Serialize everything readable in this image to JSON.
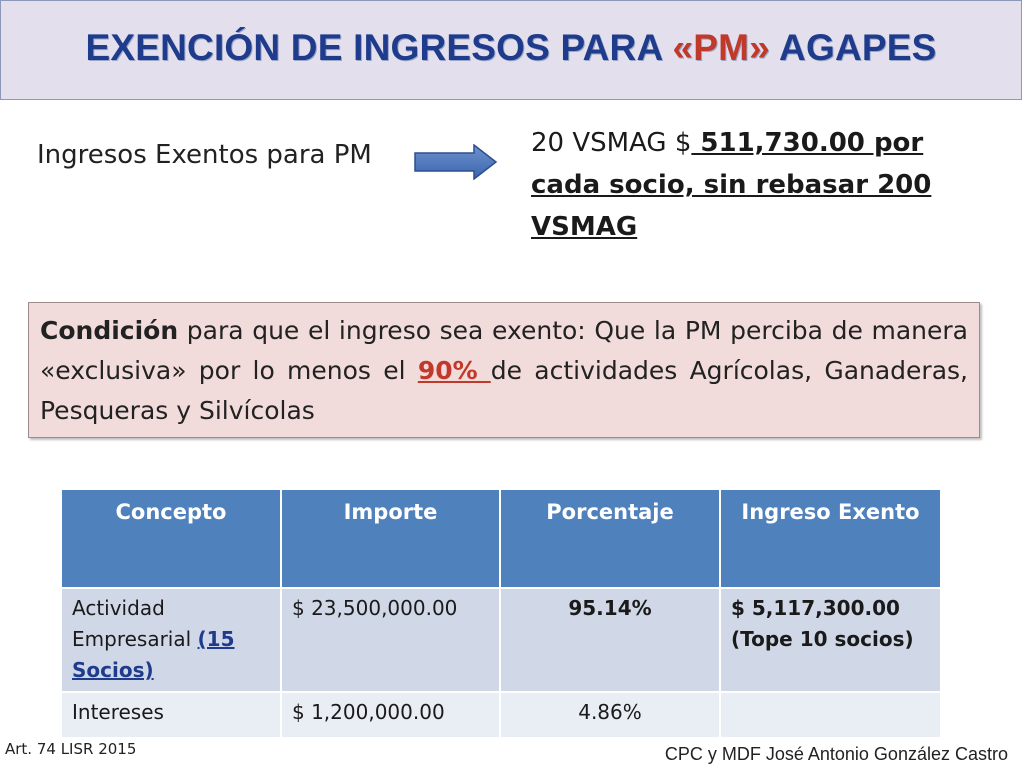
{
  "title": {
    "part1": "EXENCIÓN DE INGRESOS PARA ",
    "accent": "«PM»",
    "part2": " AGAPES",
    "colors": {
      "main": "#1f3b8c",
      "accent": "#c0392b",
      "band": "#e4dfec"
    }
  },
  "summary": {
    "left_label": "Ingresos Exentos para PM",
    "arrow_icon": "right-arrow-icon",
    "right_plain": "20 VSMAG $",
    "right_bold": " 511,730.00 por cada socio, sin rebasar 200 VSMAG"
  },
  "condition": {
    "lead": "Condición",
    "text1": " para que el ingreso sea exento: Que la PM perciba de manera «exclusiva» por lo menos el ",
    "percent": "90% ",
    "text2": "de actividades Agrícolas, Ganaderas, Pesqueras y Silvícolas"
  },
  "table": {
    "headers": [
      "Concepto",
      "Importe",
      "Porcentaje",
      "Ingreso Exento"
    ],
    "rows": [
      {
        "concepto": "Actividad Empresarial ",
        "concepto_link": "(15 Socios)",
        "importe": "$ 23,500,000.00",
        "porcentaje": "95.14%",
        "ingreso_line1": "$ 5,117,300.00",
        "ingreso_line2": "(Tope 10 socios)"
      },
      {
        "concepto": "Intereses",
        "importe": "$ 1,200,000.00",
        "porcentaje": "4.86%",
        "ingreso": ""
      }
    ],
    "colors": {
      "header": "#4f81bd",
      "row1": "#d0d8e8",
      "row2": "#e9edf4"
    }
  },
  "footer": {
    "left": "Art. 74 LISR 2015",
    "right": "CPC y MDF José Antonio González Castro"
  }
}
